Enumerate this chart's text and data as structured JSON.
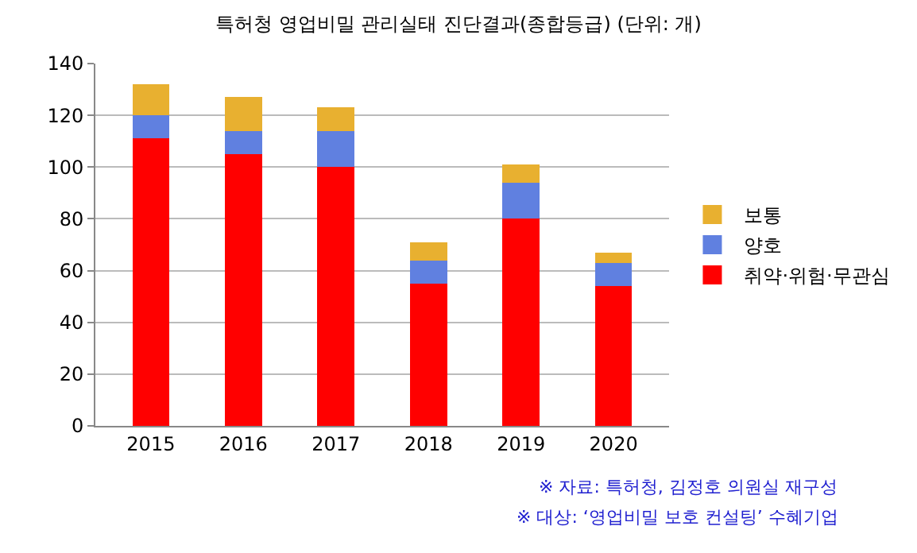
{
  "chart_data": {
    "type": "bar",
    "title": "특허청 영업비밀 관리실태 진단결과(종합등급) (단위: 개)",
    "categories": [
      "2015",
      "2016",
      "2017",
      "2018",
      "2019",
      "2020"
    ],
    "series": [
      {
        "name": "취약·위험·무관심",
        "color": "#ff0000",
        "values": [
          111,
          105,
          100,
          55,
          80,
          54
        ]
      },
      {
        "name": "양호",
        "color": "#6080e0",
        "values": [
          9,
          9,
          14,
          9,
          14,
          9
        ]
      },
      {
        "name": "보통",
        "color": "#e8b030",
        "values": [
          12,
          13,
          9,
          7,
          7,
          4
        ]
      }
    ],
    "stacked": true,
    "ylim": [
      0,
      140
    ],
    "yticks": [
      0,
      20,
      40,
      60,
      80,
      100,
      120,
      140
    ],
    "grid": "y",
    "legend": "right",
    "annotations": [
      "※ 자료: 특허청, 김정호 의원실 재구성",
      "※ 대상: ‘영업비밀 보호 컨설팅’ 수혜기업"
    ]
  }
}
